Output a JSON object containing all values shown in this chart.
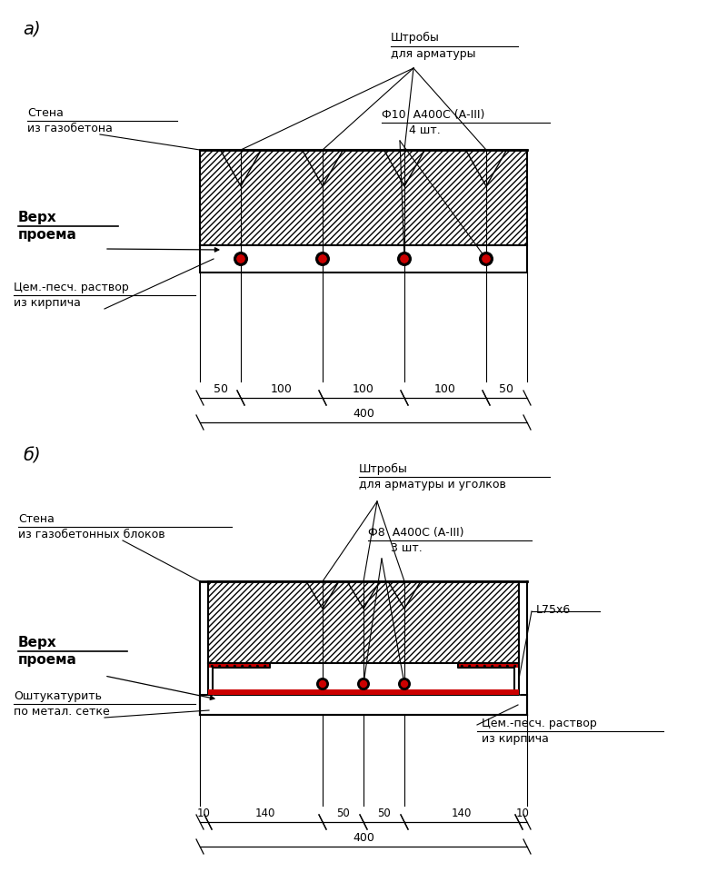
{
  "bg_color": "#ffffff",
  "red_color": "#cc0000",
  "label_a": "а)",
  "label_b": "б)",
  "fig_width": 8.0,
  "fig_height": 9.6,
  "a_title1": "Штробы",
  "a_title2": "для арматуры",
  "a_wall_label1": "Стена",
  "a_wall_label2": "из газобетона",
  "a_top_label1": "Верх",
  "a_top_label2": "проема",
  "a_mortar_label1": "Цем.-песч. раствор",
  "a_mortar_label2": "из кирпича",
  "a_rebar_label1": "Ф10  А400С (А-III)",
  "a_rebar_label2": "4 шт.",
  "a_dims": [
    "50",
    "100",
    "100",
    "100",
    "50"
  ],
  "a_total": "400",
  "b_title1": "Штробы",
  "b_title2": "для арматуры и уголков",
  "b_wall_label1": "Стена",
  "b_wall_label2": "из газобетонных блоков",
  "b_top_label1": "Верх",
  "b_top_label2": "проема",
  "b_plaster_label1": "Оштукатурить",
  "b_plaster_label2": "по метал. сетке",
  "b_mortar_label1": "Цем.-песч. раствор",
  "b_mortar_label2": "из кирпича",
  "b_rebar_label1": "Ф8  А400С (А-III)",
  "b_rebar_label2": "3 шт.",
  "b_angle_label": "L75x6",
  "b_dims": [
    "10",
    "140",
    "50",
    "50",
    "140",
    "10"
  ],
  "b_total": "400"
}
